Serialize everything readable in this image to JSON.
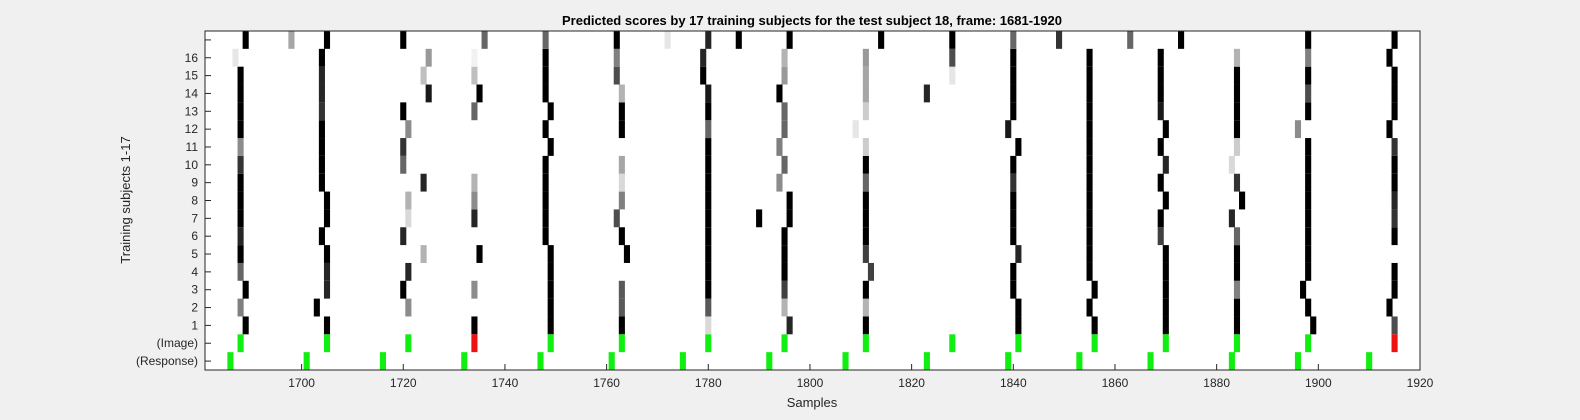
{
  "chart_data": {
    "type": "heatmap",
    "title": "Predicted scores by 17 training subjects for the test subject 18, frame: 1681-1920",
    "xlabel": "Samples",
    "ylabel": "Training subjects 1-17",
    "xlim": [
      1681,
      1920
    ],
    "x_ticks": [
      1700,
      1720,
      1740,
      1760,
      1780,
      1800,
      1820,
      1840,
      1860,
      1880,
      1900,
      1920
    ],
    "row_labels": [
      "(Response)",
      "(Image)",
      "1",
      "2",
      "3",
      "4",
      "5",
      "6",
      "7",
      "8",
      "9",
      "10",
      "11",
      "12",
      "13",
      "14",
      "15",
      "16",
      ""
    ],
    "colors": {
      "background": "#f0f0f0",
      "plot_bg": "#ffffff",
      "match": "#11ee11",
      "miss": "#ee1111",
      "axis": "#262626"
    },
    "marker_rows": {
      "response": [
        1686,
        1701,
        1716,
        1732,
        1747,
        1761,
        1775,
        1792,
        1807,
        1823,
        1839,
        1853,
        1867,
        1883,
        1896,
        1910
      ],
      "image_green": [
        1688,
        1705,
        1721,
        1749,
        1763,
        1780,
        1795,
        1811,
        1828,
        1841,
        1856,
        1870,
        1884,
        1898
      ],
      "image_red": [
        1734,
        1915
      ]
    },
    "subject_scores": [
      [
        [
          1689,
          1
        ],
        [
          1705,
          1
        ],
        [
          1734,
          1
        ],
        [
          1749,
          1
        ],
        [
          1763,
          1
        ],
        [
          1780,
          0.15
        ],
        [
          1796,
          0.85
        ],
        [
          1811,
          1
        ],
        [
          1841,
          1
        ],
        [
          1856,
          1
        ],
        [
          1870,
          1
        ],
        [
          1884,
          1
        ],
        [
          1899,
          1
        ],
        [
          1915,
          0.7
        ]
      ],
      [
        [
          1688,
          0.5
        ],
        [
          1703,
          1
        ],
        [
          1721,
          0.45
        ],
        [
          1749,
          1
        ],
        [
          1763,
          0.65
        ],
        [
          1780,
          0.65
        ],
        [
          1795,
          0.3
        ],
        [
          1811,
          0.3
        ],
        [
          1841,
          1
        ],
        [
          1855,
          1
        ],
        [
          1870,
          1
        ],
        [
          1884,
          1
        ],
        [
          1898,
          1
        ],
        [
          1914,
          1
        ]
      ],
      [
        [
          1689,
          1
        ],
        [
          1705,
          0.85
        ],
        [
          1720,
          1
        ],
        [
          1734,
          0.45
        ],
        [
          1749,
          1
        ],
        [
          1763,
          0.65
        ],
        [
          1780,
          1
        ],
        [
          1795,
          0.75
        ],
        [
          1811,
          1
        ],
        [
          1840,
          1
        ],
        [
          1856,
          1
        ],
        [
          1870,
          1
        ],
        [
          1884,
          0.5
        ],
        [
          1897,
          1
        ],
        [
          1915,
          1
        ]
      ],
      [
        [
          1688,
          0.6
        ],
        [
          1705,
          0.85
        ],
        [
          1721,
          0.85
        ],
        [
          1749,
          1
        ],
        [
          1780,
          1
        ],
        [
          1795,
          1
        ],
        [
          1812,
          0.75
        ],
        [
          1840,
          1
        ],
        [
          1855,
          1
        ],
        [
          1870,
          1
        ],
        [
          1884,
          1
        ],
        [
          1898,
          1
        ],
        [
          1915,
          1
        ]
      ],
      [
        [
          1688,
          1
        ],
        [
          1705,
          1
        ],
        [
          1724,
          0.3
        ],
        [
          1735,
          1
        ],
        [
          1749,
          1
        ],
        [
          1764,
          1
        ],
        [
          1780,
          1
        ],
        [
          1795,
          1
        ],
        [
          1811,
          0.75
        ],
        [
          1841,
          0.85
        ],
        [
          1855,
          1
        ],
        [
          1870,
          1
        ],
        [
          1884,
          1
        ],
        [
          1898,
          1
        ]
      ],
      [
        [
          1688,
          0.85
        ],
        [
          1704,
          1
        ],
        [
          1720,
          0.85
        ],
        [
          1748,
          1
        ],
        [
          1763,
          1
        ],
        [
          1780,
          1
        ],
        [
          1795,
          1
        ],
        [
          1811,
          1
        ],
        [
          1840,
          1
        ],
        [
          1855,
          1
        ],
        [
          1869,
          0.75
        ],
        [
          1884,
          0.6
        ],
        [
          1898,
          1
        ],
        [
          1915,
          1
        ]
      ],
      [
        [
          1688,
          1
        ],
        [
          1705,
          1
        ],
        [
          1721,
          0.15
        ],
        [
          1734,
          0.85
        ],
        [
          1748,
          1
        ],
        [
          1762,
          0.7
        ],
        [
          1780,
          1
        ],
        [
          1790,
          1
        ],
        [
          1796,
          1
        ],
        [
          1811,
          1
        ],
        [
          1840,
          1
        ],
        [
          1855,
          1
        ],
        [
          1869,
          1
        ],
        [
          1883,
          0.85
        ],
        [
          1898,
          1
        ],
        [
          1915,
          0.8
        ]
      ],
      [
        [
          1688,
          1
        ],
        [
          1705,
          1
        ],
        [
          1721,
          0.3
        ],
        [
          1734,
          0.45
        ],
        [
          1748,
          1
        ],
        [
          1763,
          0.5
        ],
        [
          1780,
          1
        ],
        [
          1796,
          1
        ],
        [
          1811,
          1
        ],
        [
          1840,
          1
        ],
        [
          1855,
          1
        ],
        [
          1870,
          1
        ],
        [
          1885,
          1
        ],
        [
          1898,
          1
        ],
        [
          1915,
          0.85
        ]
      ],
      [
        [
          1688,
          1
        ],
        [
          1704,
          1
        ],
        [
          1724,
          0.85
        ],
        [
          1734,
          0.3
        ],
        [
          1748,
          1
        ],
        [
          1763,
          0.15
        ],
        [
          1780,
          1
        ],
        [
          1794,
          0.45
        ],
        [
          1811,
          0.6
        ],
        [
          1840,
          0.8
        ],
        [
          1855,
          1
        ],
        [
          1869,
          1
        ],
        [
          1884,
          0.8
        ],
        [
          1898,
          1
        ],
        [
          1915,
          1
        ]
      ],
      [
        [
          1688,
          0.8
        ],
        [
          1704,
          1
        ],
        [
          1720,
          0.6
        ],
        [
          1748,
          1
        ],
        [
          1763,
          0.35
        ],
        [
          1780,
          1
        ],
        [
          1795,
          0.6
        ],
        [
          1811,
          1
        ],
        [
          1840,
          1
        ],
        [
          1855,
          1
        ],
        [
          1870,
          0.85
        ],
        [
          1883,
          0.15
        ],
        [
          1898,
          1
        ],
        [
          1915,
          1
        ]
      ],
      [
        [
          1688,
          0.45
        ],
        [
          1704,
          1
        ],
        [
          1720,
          0.8
        ],
        [
          1749,
          1
        ],
        [
          1780,
          1
        ],
        [
          1794,
          0.5
        ],
        [
          1811,
          0.2
        ],
        [
          1841,
          1
        ],
        [
          1855,
          1
        ],
        [
          1869,
          1
        ],
        [
          1884,
          0.2
        ],
        [
          1898,
          1
        ],
        [
          1915,
          0.8
        ]
      ],
      [
        [
          1688,
          1
        ],
        [
          1704,
          1
        ],
        [
          1721,
          0.45
        ],
        [
          1748,
          1
        ],
        [
          1763,
          1
        ],
        [
          1780,
          0.6
        ],
        [
          1795,
          0.6
        ],
        [
          1809,
          0.1
        ],
        [
          1839,
          0.9
        ],
        [
          1855,
          1
        ],
        [
          1870,
          1
        ],
        [
          1884,
          1
        ],
        [
          1896,
          0.45
        ],
        [
          1914,
          1
        ]
      ],
      [
        [
          1688,
          1
        ],
        [
          1704,
          0.8
        ],
        [
          1720,
          1
        ],
        [
          1734,
          0.6
        ],
        [
          1749,
          1
        ],
        [
          1763,
          1
        ],
        [
          1780,
          1
        ],
        [
          1795,
          0.6
        ],
        [
          1811,
          0.2
        ],
        [
          1840,
          1
        ],
        [
          1855,
          1
        ],
        [
          1869,
          0.9
        ],
        [
          1884,
          1
        ],
        [
          1898,
          1
        ],
        [
          1915,
          1
        ]
      ],
      [
        [
          1688,
          1
        ],
        [
          1704,
          0.85
        ],
        [
          1725,
          0.9
        ],
        [
          1735,
          1
        ],
        [
          1748,
          1
        ],
        [
          1763,
          0.3
        ],
        [
          1780,
          0.9
        ],
        [
          1794,
          1
        ],
        [
          1811,
          0.35
        ],
        [
          1823,
          0.85
        ],
        [
          1840,
          1
        ],
        [
          1855,
          1
        ],
        [
          1869,
          1
        ],
        [
          1884,
          1
        ],
        [
          1898,
          0.7
        ],
        [
          1915,
          1
        ]
      ],
      [
        [
          1688,
          1
        ],
        [
          1704,
          0.85
        ],
        [
          1724,
          0.25
        ],
        [
          1734,
          0.25
        ],
        [
          1748,
          1
        ],
        [
          1762,
          0.7
        ],
        [
          1779,
          1
        ],
        [
          1795,
          0.4
        ],
        [
          1811,
          0.35
        ],
        [
          1828,
          0.1
        ],
        [
          1840,
          1
        ],
        [
          1855,
          1
        ],
        [
          1869,
          1
        ],
        [
          1884,
          1
        ],
        [
          1898,
          1
        ],
        [
          1915,
          1
        ]
      ],
      [
        [
          1687,
          0.1
        ],
        [
          1704,
          1
        ],
        [
          1725,
          0.4
        ],
        [
          1734,
          0.05
        ],
        [
          1748,
          1
        ],
        [
          1762,
          0.5
        ],
        [
          1779,
          0.85
        ],
        [
          1795,
          0.3
        ],
        [
          1811,
          0.4
        ],
        [
          1828,
          0.7
        ],
        [
          1840,
          1
        ],
        [
          1855,
          1
        ],
        [
          1869,
          1
        ],
        [
          1884,
          0.3
        ],
        [
          1898,
          0.5
        ],
        [
          1914,
          1
        ]
      ],
      [
        [
          1689,
          1
        ],
        [
          1698,
          0.35
        ],
        [
          1705,
          1
        ],
        [
          1720,
          1
        ],
        [
          1736,
          0.6
        ],
        [
          1748,
          0.6
        ],
        [
          1762,
          1
        ],
        [
          1772,
          0.1
        ],
        [
          1780,
          0.85
        ],
        [
          1786,
          1
        ],
        [
          1796,
          1
        ],
        [
          1814,
          1
        ],
        [
          1828,
          1
        ],
        [
          1840,
          0.6
        ],
        [
          1849,
          0.8
        ],
        [
          1863,
          0.6
        ],
        [
          1873,
          1
        ],
        [
          1898,
          1
        ],
        [
          1915,
          1
        ]
      ]
    ]
  }
}
